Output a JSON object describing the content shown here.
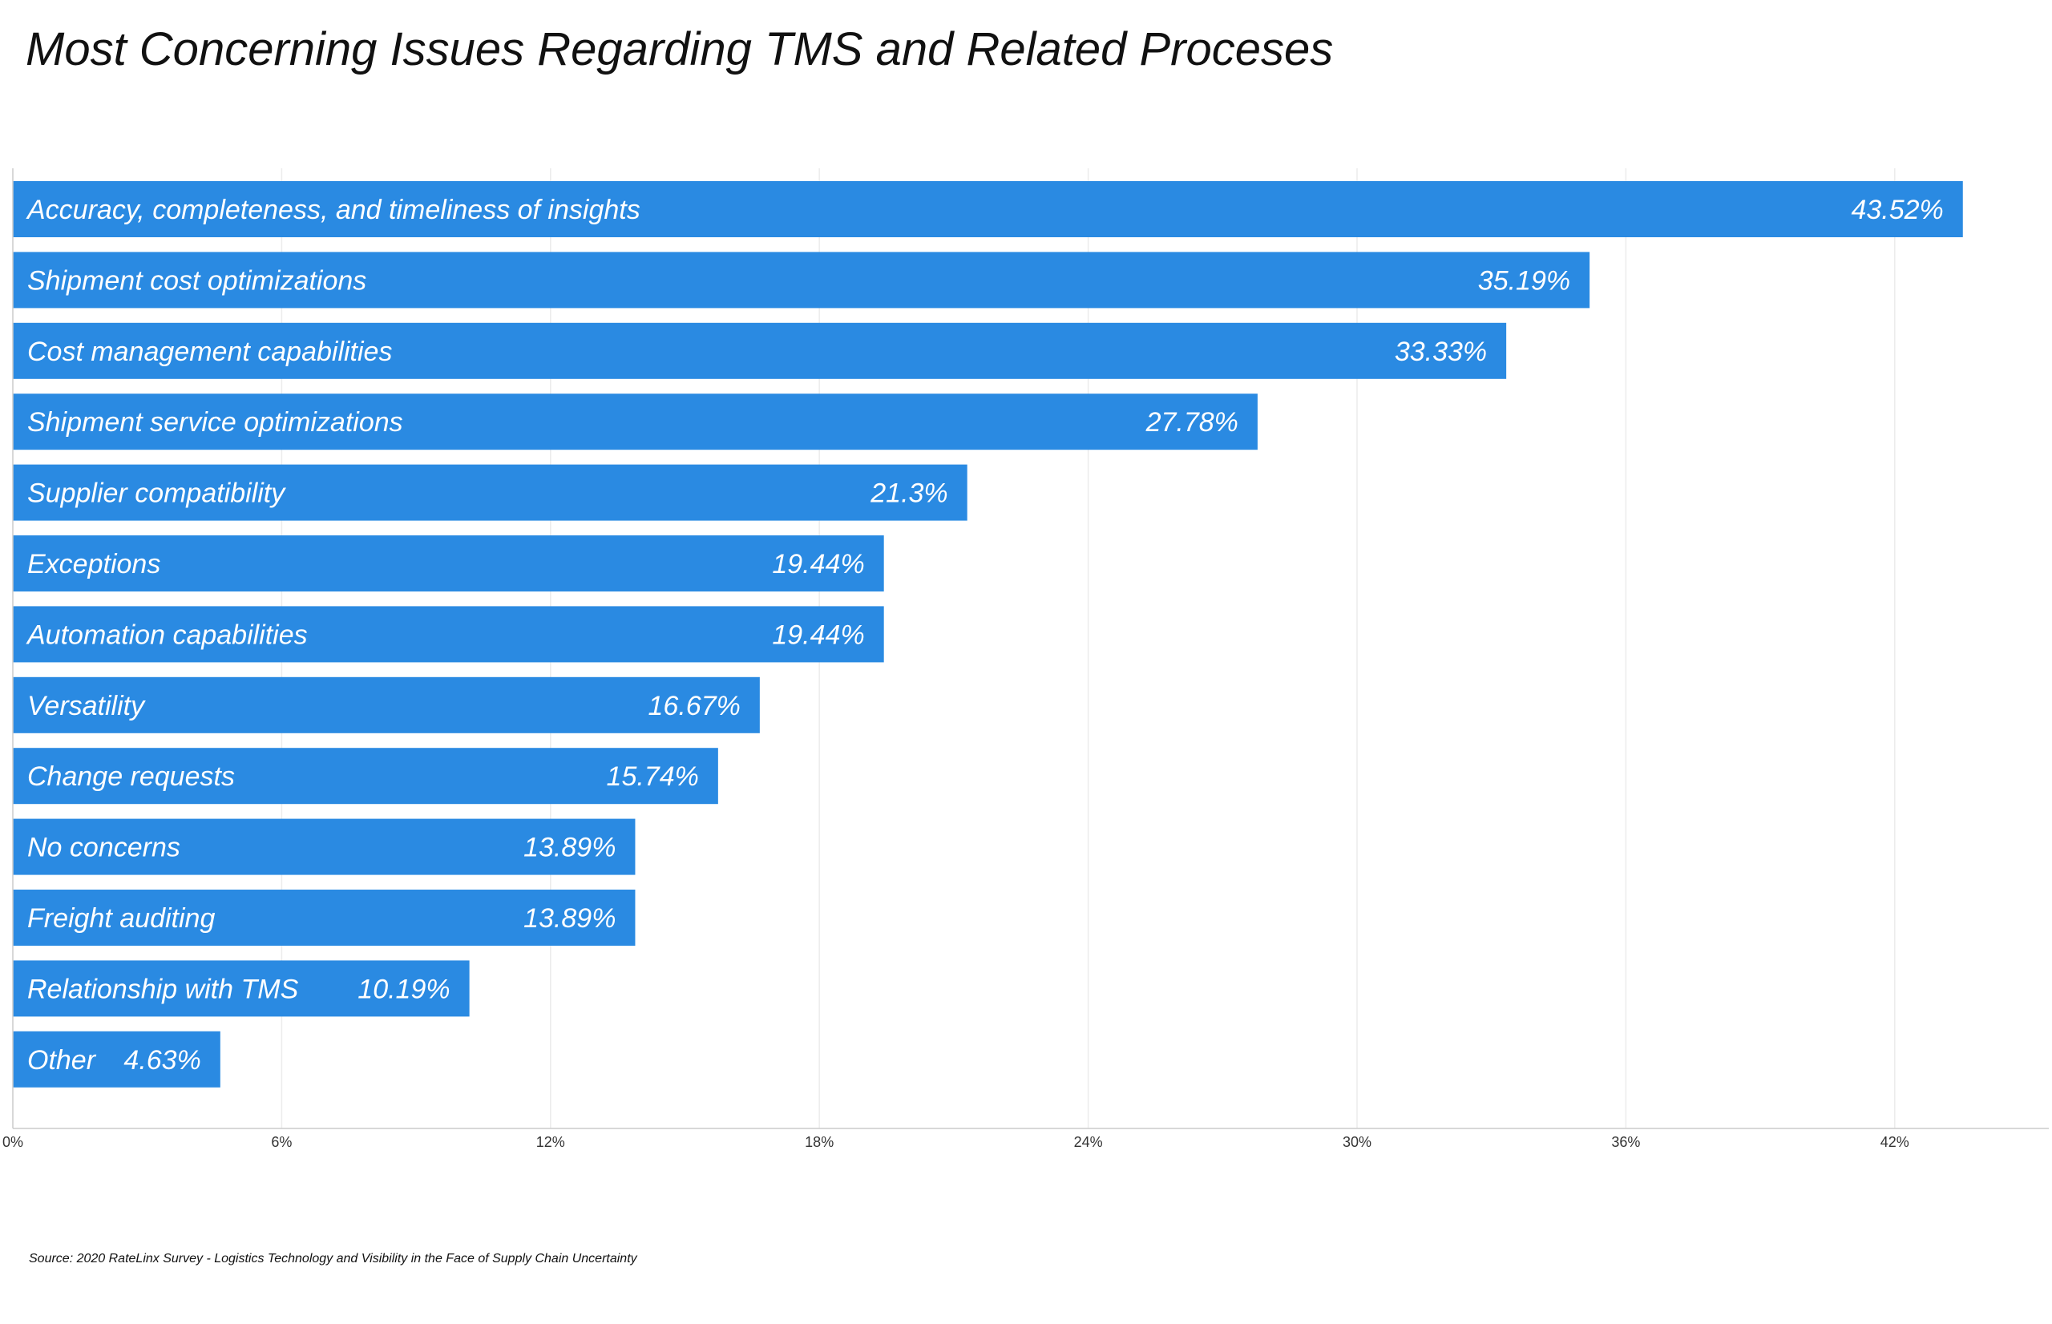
{
  "chart_data": {
    "type": "bar",
    "orientation": "horizontal",
    "title": "Most Concerning Issues Regarding TMS and Related Proceses",
    "categories": [
      "Accuracy, completeness, and timeliness of insights",
      "Shipment cost optimizations",
      "Cost management capabilities",
      "Shipment service optimizations",
      "Supplier compatibility",
      "Exceptions",
      "Automation capabilities",
      "Versatility",
      "Change requests",
      "No concerns",
      "Freight auditing",
      "Relationship with TMS",
      "Other"
    ],
    "values": [
      43.52,
      35.19,
      33.33,
      27.78,
      21.3,
      19.44,
      19.44,
      16.67,
      15.74,
      13.89,
      13.89,
      10.19,
      4.63
    ],
    "value_labels": [
      "43.52%",
      "35.19%",
      "33.33%",
      "27.78%",
      "21.3%",
      "19.44%",
      "19.44%",
      "16.67%",
      "15.74%",
      "13.89%",
      "13.89%",
      "10.19%",
      "4.63%"
    ],
    "xlim": [
      0,
      45.5
    ],
    "xticks": [
      0,
      6,
      12,
      18,
      24,
      30,
      36,
      42
    ],
    "xtick_labels": [
      "0%",
      "6%",
      "12%",
      "18%",
      "24%",
      "30%",
      "36%",
      "42%"
    ],
    "grid": true,
    "legend": "none",
    "bar_color": "#2a8ae2",
    "source": "Source: 2020 RateLinx Survey - Logistics Technology and Visibility in the Face of Supply Chain Uncertainty"
  }
}
